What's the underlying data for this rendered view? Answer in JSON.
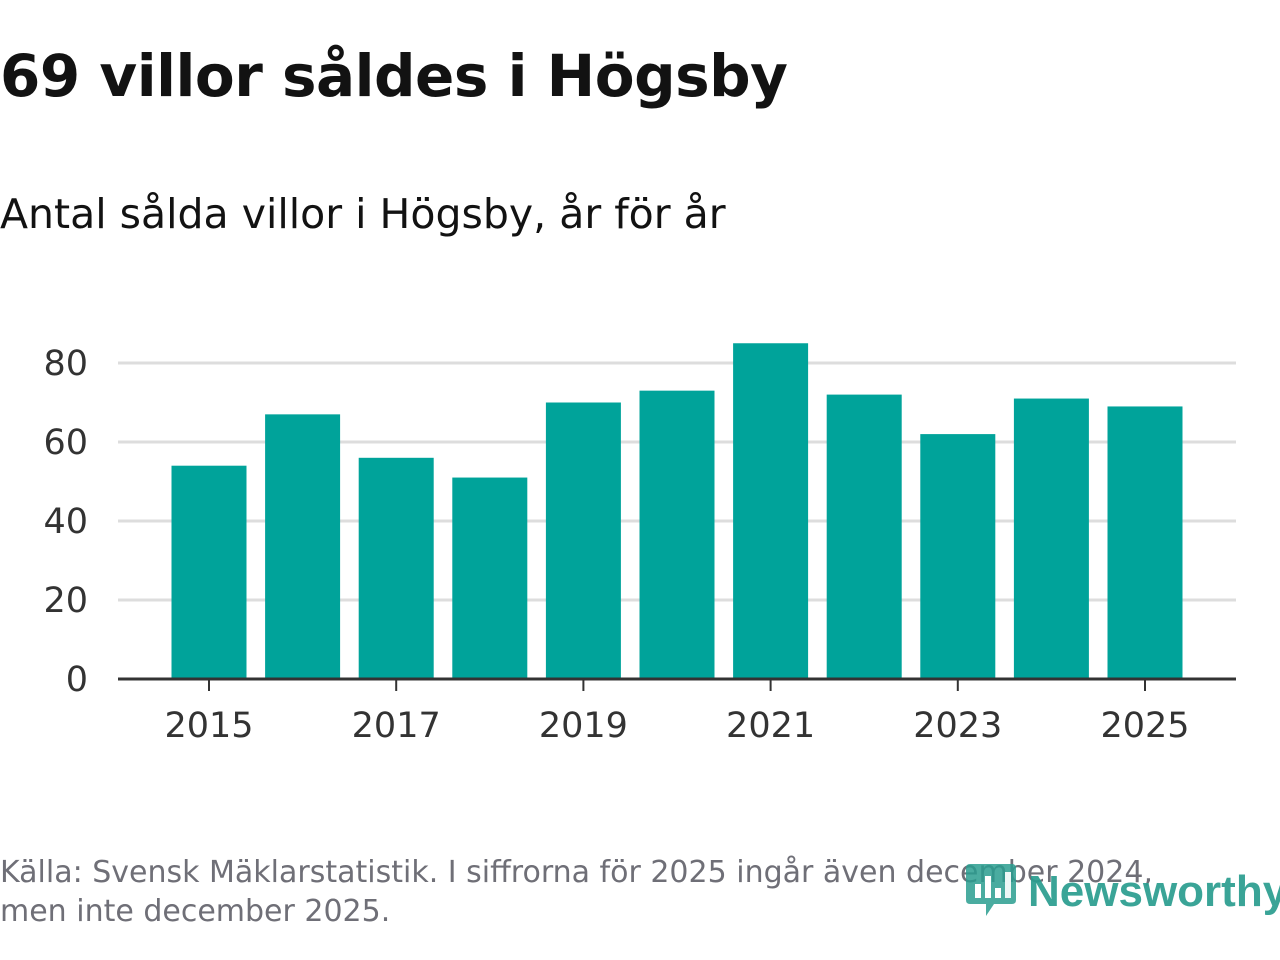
{
  "header": {
    "title": "69 villor såldes i Högsby",
    "subtitle": "Antal sålda villor i Högsby, år för år"
  },
  "chart_data": {
    "type": "bar",
    "title": "69 villor såldes i Högsby",
    "subtitle": "Antal sålda villor i Högsby, år för år",
    "xlabel": "",
    "ylabel": "",
    "categories": [
      "2015",
      "2016",
      "2017",
      "2018",
      "2019",
      "2020",
      "2021",
      "2022",
      "2023",
      "2024",
      "2025"
    ],
    "values": [
      54,
      67,
      56,
      51,
      70,
      73,
      85,
      72,
      62,
      71,
      69
    ],
    "ylim": [
      0,
      88
    ],
    "yticks": [
      "0",
      "20",
      "40",
      "60",
      "80"
    ],
    "xticks": [
      "2015",
      "2017",
      "2019",
      "2021",
      "2023",
      "2025"
    ],
    "grid": true,
    "bar_color": "#00a39a"
  },
  "footnote": {
    "line1": "Källa: Svensk Mäklarstatistik. I siffrorna för 2025 ingår även december 2024,",
    "line2": "men inte december 2025."
  },
  "logo": {
    "name": "Newsworthy",
    "icon": "newsworthy-chart-icon",
    "color": "#2a9d8f"
  }
}
